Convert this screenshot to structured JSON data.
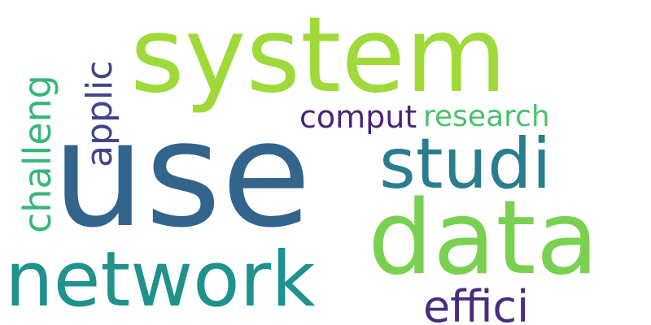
{
  "words": [
    {
      "text": "use",
      "weight": 1.0,
      "color": "#33648c"
    },
    {
      "text": "system",
      "weight": 0.95,
      "color": "#9fda3a"
    },
    {
      "text": "data",
      "weight": 0.78,
      "color": "#7ad151"
    },
    {
      "text": "network",
      "weight": 0.6,
      "color": "#1f928c"
    },
    {
      "text": "studi",
      "weight": 0.5,
      "color": "#287d8e"
    },
    {
      "text": "challeng",
      "weight": 0.37,
      "color": "#35b779"
    },
    {
      "text": "effici",
      "weight": 0.36,
      "color": "#472d7b"
    },
    {
      "text": "applic",
      "weight": 0.33,
      "color": "#3f4788"
    },
    {
      "text": "comput",
      "weight": 0.25,
      "color": "#482576"
    },
    {
      "text": "research",
      "weight": 0.24,
      "color": "#4ac16d"
    }
  ]
}
